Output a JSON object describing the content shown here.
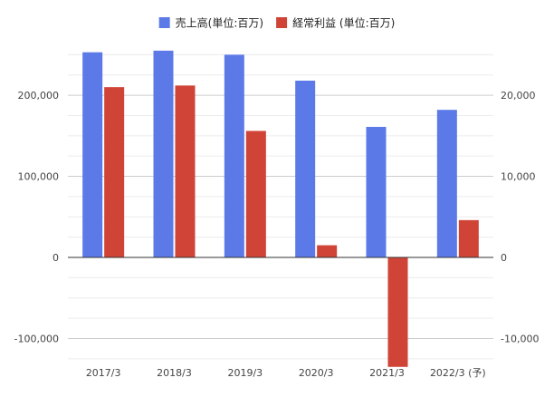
{
  "chart_data": {
    "type": "bar",
    "categories": [
      "2017/3",
      "2018/3",
      "2019/3",
      "2020/3",
      "2021/3",
      "2022/3 (予)"
    ],
    "series": [
      {
        "name": "売上高(単位:百万)",
        "axis": "left",
        "color": "#5b7ae8",
        "values": [
          253000,
          255000,
          250000,
          218000,
          161000,
          182000
        ]
      },
      {
        "name": "経常利益 (単位:百万)",
        "axis": "right",
        "color": "#cf4437",
        "values": [
          21000,
          21200,
          15600,
          1500,
          -13500,
          4600
        ]
      }
    ],
    "y_left": {
      "lim": [
        -136000,
        275000
      ],
      "ticks": [
        -100000,
        0,
        100000,
        200000
      ],
      "tick_labels": [
        "-100,000",
        "0",
        "100,000",
        "200,000"
      ]
    },
    "y_right": {
      "lim": [
        -13600,
        27500
      ],
      "ticks": [
        -10000,
        0,
        10000,
        20000
      ],
      "tick_labels": [
        "-10,000",
        "0",
        "10,000",
        "20,000"
      ]
    },
    "grid": true,
    "legend": "top-center"
  }
}
